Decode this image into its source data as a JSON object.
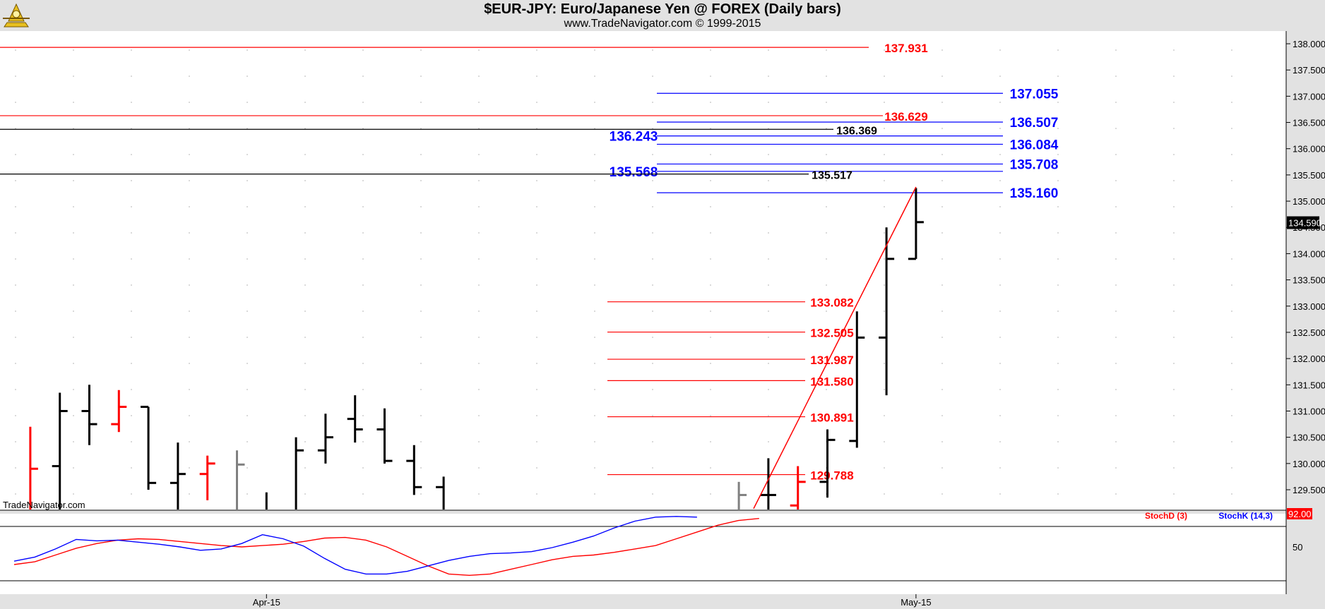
{
  "title": "$EUR-JPY:  Euro/Japanese Yen @ FOREX  (Daily bars)",
  "subtitle": "www.TradeNavigator.com © 1999-2015",
  "watermark": "TradeNavigator.com",
  "colors": {
    "bg": "#ffffff",
    "frame": "#e2e2e2",
    "red": "#ff0000",
    "blue": "#0000ff",
    "black": "#000000",
    "gray": "#808080",
    "grid": "#c0c0c0"
  },
  "chart_data": [
    {
      "type": "ohlc",
      "ylim": [
        129.14,
        138.5
      ],
      "y_ticks": [
        "138.000",
        "137.500",
        "137.000",
        "136.500",
        "136.000",
        "135.500",
        "135.000",
        "134.500",
        "134.000",
        "133.500",
        "133.000",
        "132.500",
        "132.000",
        "131.500",
        "131.000",
        "130.500",
        "130.000",
        "129.500"
      ],
      "last_price": "134.590",
      "bars": [
        {
          "i": 1,
          "o": null,
          "h": 130.7,
          "l": 129.1,
          "c": 129.9,
          "color": "red"
        },
        {
          "i": 3,
          "o": 129.95,
          "h": 131.35,
          "l": 129.1,
          "c": 131.0,
          "color": "black"
        },
        {
          "i": 5,
          "o": 131.0,
          "h": 131.5,
          "l": 130.35,
          "c": 130.75,
          "color": "black"
        },
        {
          "i": 7,
          "o": 130.75,
          "h": 131.4,
          "l": 130.6,
          "c": 131.08,
          "color": "red"
        },
        {
          "i": 9,
          "o": 131.08,
          "h": 131.08,
          "l": 129.5,
          "c": 129.63,
          "color": "black"
        },
        {
          "i": 11,
          "o": 129.63,
          "h": 130.4,
          "l": 129.1,
          "c": 129.8,
          "color": "black"
        },
        {
          "i": 13,
          "o": 129.8,
          "h": 130.15,
          "l": 129.3,
          "c": 130.0,
          "color": "red"
        },
        {
          "i": 15,
          "o": null,
          "h": 130.25,
          "l": 129.1,
          "c": 129.98,
          "color": "gray"
        },
        {
          "i": 17,
          "o": null,
          "h": 129.45,
          "l": 129.1,
          "c": null,
          "color": "black"
        },
        {
          "i": 19,
          "o": null,
          "h": 130.5,
          "l": 129.1,
          "c": 130.25,
          "color": "black"
        },
        {
          "i": 21,
          "o": 130.25,
          "h": 130.95,
          "l": 130.0,
          "c": 130.5,
          "color": "black"
        },
        {
          "i": 23,
          "o": 130.85,
          "h": 131.3,
          "l": 130.4,
          "c": 130.65,
          "color": "black"
        },
        {
          "i": 25,
          "o": 130.65,
          "h": 131.05,
          "l": 130.0,
          "c": 130.05,
          "color": "black"
        },
        {
          "i": 27,
          "o": 130.05,
          "h": 130.35,
          "l": 129.4,
          "c": 129.55,
          "color": "black"
        },
        {
          "i": 29,
          "o": 129.55,
          "h": 129.75,
          "l": 129.1,
          "c": null,
          "color": "black"
        },
        {
          "i": 49,
          "o": null,
          "h": 129.65,
          "l": 129.1,
          "c": 129.4,
          "color": "gray"
        },
        {
          "i": 51,
          "o": 129.4,
          "h": 130.1,
          "l": 129.1,
          "c": 129.4,
          "color": "black"
        },
        {
          "i": 53,
          "o": 129.2,
          "h": 129.95,
          "l": 129.1,
          "c": 129.65,
          "color": "red"
        },
        {
          "i": 55,
          "o": 129.65,
          "h": 130.65,
          "l": 129.35,
          "c": 130.45,
          "color": "black"
        },
        {
          "i": 57,
          "o": 130.43,
          "h": 132.9,
          "l": 130.3,
          "c": 132.4,
          "color": "black"
        },
        {
          "i": 59,
          "o": 132.4,
          "h": 134.5,
          "l": 131.3,
          "c": 133.9,
          "color": "black"
        },
        {
          "i": 61,
          "o": 133.9,
          "h": 135.25,
          "l": 133.9,
          "c": 134.6,
          "color": "black"
        }
      ],
      "horizontal_levels": [
        {
          "value": 137.931,
          "label": "137.931",
          "color": "red",
          "from": 0,
          "to": 1230,
          "label_x": 1283
        },
        {
          "value": 137.055,
          "label": "137.055",
          "color": "blue",
          "from": 930,
          "to": 1420,
          "label_x": 1464
        },
        {
          "value": 136.629,
          "label": "136.629",
          "color": "red",
          "from": 0,
          "to": 1250,
          "label_x": 1283
        },
        {
          "value": 136.507,
          "label": "136.507",
          "color": "blue",
          "from": 930,
          "to": 1420,
          "label_x": 1464
        },
        {
          "value": 136.369,
          "label": "136.369",
          "color": "black",
          "from": 0,
          "to": 1180,
          "label_x": 1213
        },
        {
          "value": 136.243,
          "label": "136.243",
          "color": "blue",
          "from": 930,
          "to": 1420,
          "label_x": 897
        },
        {
          "value": 136.084,
          "label": "136.084",
          "color": "blue",
          "from": 930,
          "to": 1420,
          "label_x": 1464
        },
        {
          "value": 135.708,
          "label": "135.708",
          "color": "blue",
          "from": 930,
          "to": 1420,
          "label_x": 1464
        },
        {
          "value": 135.568,
          "label": "135.568",
          "color": "blue",
          "from": 930,
          "to": 1420,
          "label_x": 897
        },
        {
          "value": 135.517,
          "label": "135.517",
          "color": "black",
          "from": 0,
          "to": 1145,
          "label_x": 1178
        },
        {
          "value": 135.16,
          "label": "135.160",
          "color": "blue",
          "from": 930,
          "to": 1420,
          "label_x": 1464
        },
        {
          "value": 133.082,
          "label": "133.082",
          "color": "red",
          "from": 860,
          "to": 1140,
          "label_x": 1178
        },
        {
          "value": 132.505,
          "label": "132.505",
          "color": "red",
          "from": 860,
          "to": 1140,
          "label_x": 1178
        },
        {
          "value": 131.987,
          "label": "131.987",
          "color": "red",
          "from": 860,
          "to": 1140,
          "label_x": 1178
        },
        {
          "value": 131.58,
          "label": "131.580",
          "color": "red",
          "from": 860,
          "to": 1140,
          "label_x": 1178
        },
        {
          "value": 130.891,
          "label": "130.891",
          "color": "red",
          "from": 860,
          "to": 1140,
          "label_x": 1178
        },
        {
          "value": 129.788,
          "label": "129.788",
          "color": "red",
          "from": 860,
          "to": 1140,
          "label_x": 1178
        }
      ],
      "trendline": {
        "from": {
          "i": 50,
          "value": 129.14
        },
        "to": {
          "i": 61,
          "value": 135.27
        },
        "color": "red"
      }
    },
    {
      "type": "line",
      "ylim": [
        0,
        100
      ],
      "y_ticks": [
        "50"
      ],
      "last_value": "92.00",
      "series": [
        {
          "name": "StochD (3)",
          "color": "red",
          "values": [
            24,
            28,
            38,
            48,
            55,
            60,
            62,
            61,
            58,
            55,
            52,
            50,
            52,
            54,
            58,
            63,
            64,
            60,
            50,
            36,
            22,
            10,
            8,
            10,
            17,
            24,
            31,
            36,
            38,
            42,
            47,
            52,
            62,
            72,
            82,
            89,
            92
          ]
        },
        {
          "name": "StochK (14,3)",
          "color": "blue",
          "values": [
            29,
            35,
            47,
            61,
            59,
            60,
            57,
            54,
            50,
            45,
            47,
            55,
            68,
            62,
            51,
            33,
            17,
            10,
            10,
            14,
            22,
            30,
            36,
            40,
            41,
            43,
            49,
            57,
            66,
            78,
            88,
            94,
            95,
            94
          ]
        }
      ]
    }
  ],
  "x_labels": [
    {
      "label": "Apr-15",
      "i": 17
    },
    {
      "label": "May-15",
      "i": 61
    }
  ]
}
